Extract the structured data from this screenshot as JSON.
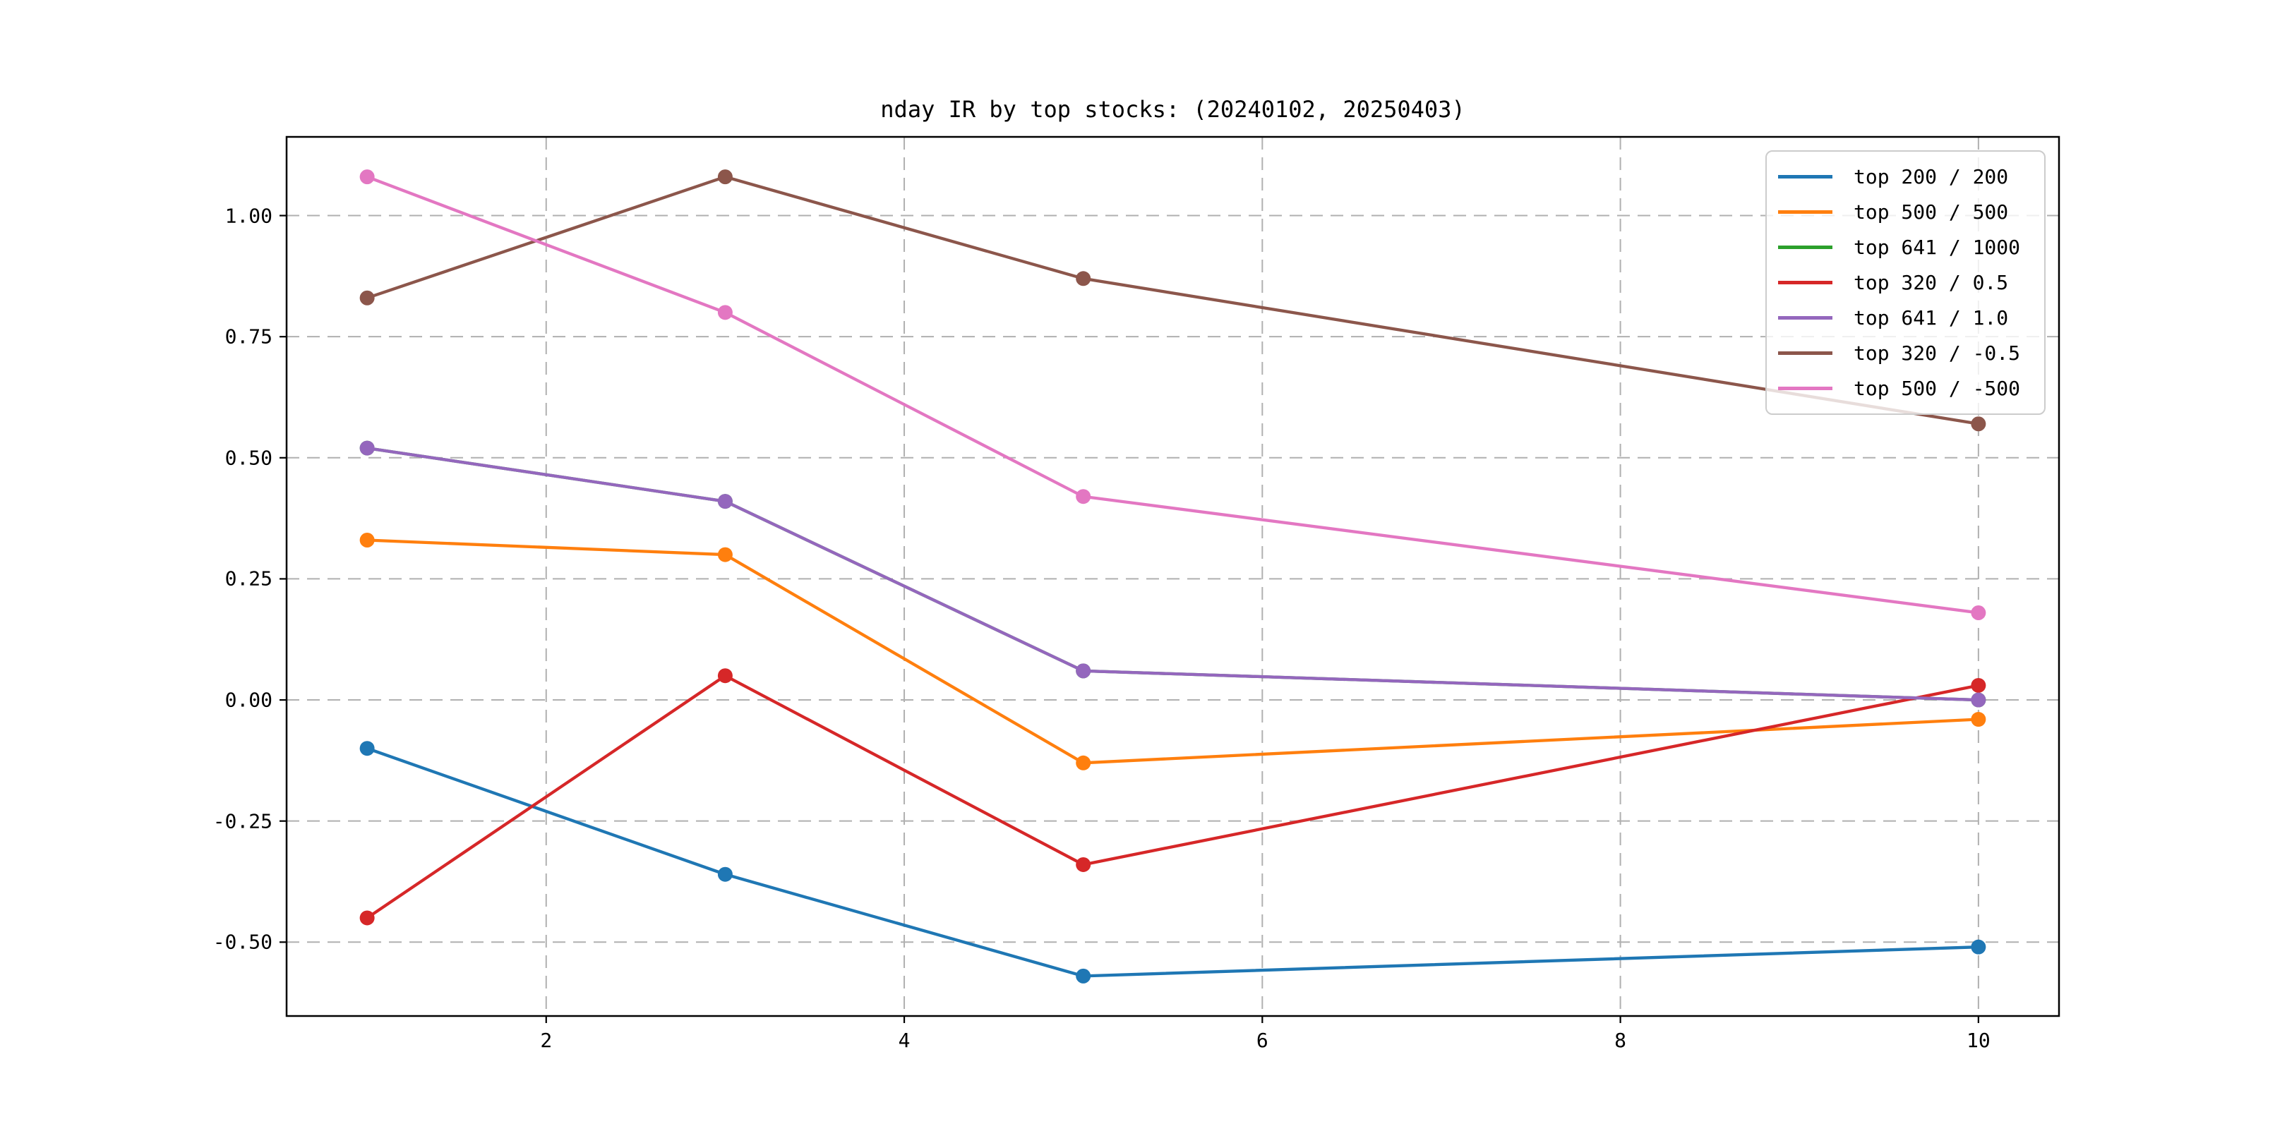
{
  "figure": {
    "background": "#ffffff",
    "axes_facecolor": "#ffffff",
    "spine_color": "#000000",
    "grid_color": "#b0b0b0",
    "tick_color": "#000000"
  },
  "chart_data": {
    "type": "line",
    "title": "nday IR by top stocks: (20240102, 20250403)",
    "xlabel": "",
    "ylabel": "",
    "x": [
      1,
      3,
      5,
      10
    ],
    "xlim": [
      0.55,
      10.45
    ],
    "ylim": [
      -0.6525,
      1.1625
    ],
    "grid": true,
    "grid_style": "dashed",
    "legend_position": "upper right",
    "xticks": {
      "values": [
        2,
        4,
        6,
        8,
        10
      ],
      "labels": [
        "2",
        "4",
        "6",
        "8",
        "10"
      ]
    },
    "yticks": {
      "values": [
        1.0,
        0.75,
        0.5,
        0.25,
        0.0,
        -0.25,
        -0.5
      ],
      "labels": [
        "1.00",
        "0.75",
        "0.50",
        "0.25",
        "0.00",
        "-0.25",
        "-0.50"
      ]
    },
    "series": [
      {
        "name": "top 200 / 200",
        "color": "#1f77b4",
        "marker": "circle",
        "values": [
          -0.1,
          -0.36,
          -0.57,
          -0.51
        ]
      },
      {
        "name": "top 500 / 500",
        "color": "#ff7f0e",
        "marker": "circle",
        "values": [
          0.33,
          0.3,
          -0.13,
          -0.04
        ]
      },
      {
        "name": "top 641 / 1000",
        "color": "#2ca02c",
        "marker": "circle",
        "values": [
          0.52,
          0.41,
          0.06,
          0.0
        ],
        "note": "line coincides with 'top 641 / 1.0' and is hidden beneath it in the plot"
      },
      {
        "name": "top 320 / 0.5",
        "color": "#d62728",
        "marker": "circle",
        "values": [
          -0.45,
          0.05,
          -0.34,
          0.03
        ]
      },
      {
        "name": "top 641 / 1.0",
        "color": "#9467bd",
        "marker": "circle",
        "values": [
          0.52,
          0.41,
          0.06,
          0.0
        ]
      },
      {
        "name": "top 320 / -0.5",
        "color": "#8c564b",
        "marker": "circle",
        "values": [
          0.83,
          1.08,
          0.87,
          0.57
        ]
      },
      {
        "name": "top 500 / -500",
        "color": "#e377c2",
        "marker": "circle",
        "values": [
          1.08,
          0.8,
          0.42,
          0.18
        ]
      }
    ]
  }
}
